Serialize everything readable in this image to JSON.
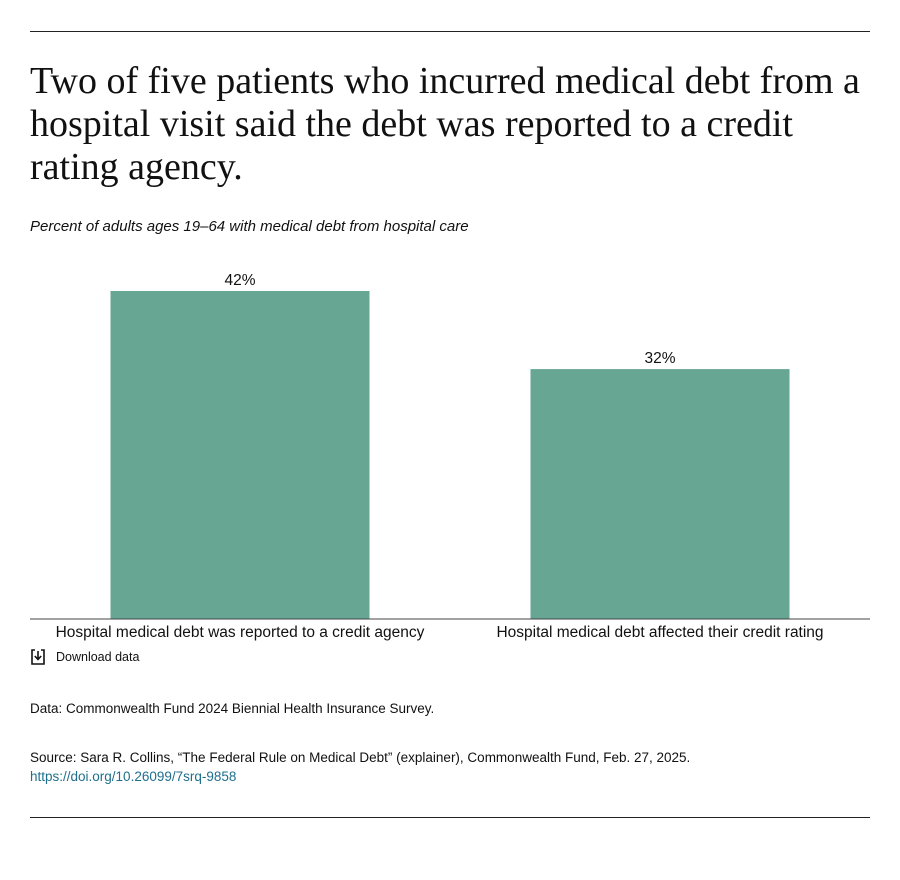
{
  "title": "Two of five patients who incurred medical debt from a hospital visit said the debt was reported to a credit rating agency.",
  "subtitle": "Percent of adults ages 19–64 with medical debt from hospital care",
  "download_label": "Download data",
  "note": "Data: Commonwealth Fund 2024 Biennial Health Insurance Survey.",
  "source_text": "Source: Sara R. Collins, “The Federal Rule on Medical Debt” (explainer), Commonwealth Fund, Feb. 27, 2025.",
  "source_link": "https://doi.org/10.26099/7srq-9858",
  "colors": {
    "bar": "#67a693",
    "baseline": "#444444",
    "link": "#1f6e8c"
  },
  "chart_data": {
    "type": "bar",
    "categories": [
      "Hospital medical debt was reported to a credit agency",
      "Hospital medical debt affected their credit rating"
    ],
    "values": [
      42,
      32
    ],
    "value_labels": [
      "42%",
      "32%"
    ],
    "title": "Two of five patients who incurred medical debt from a hospital visit said the debt was reported to a credit rating agency.",
    "subtitle": "Percent of adults ages 19–64 with medical debt from hospital care",
    "xlabel": "",
    "ylabel": "",
    "ylim": [
      0,
      42
    ],
    "grid": false,
    "legend": "none"
  }
}
